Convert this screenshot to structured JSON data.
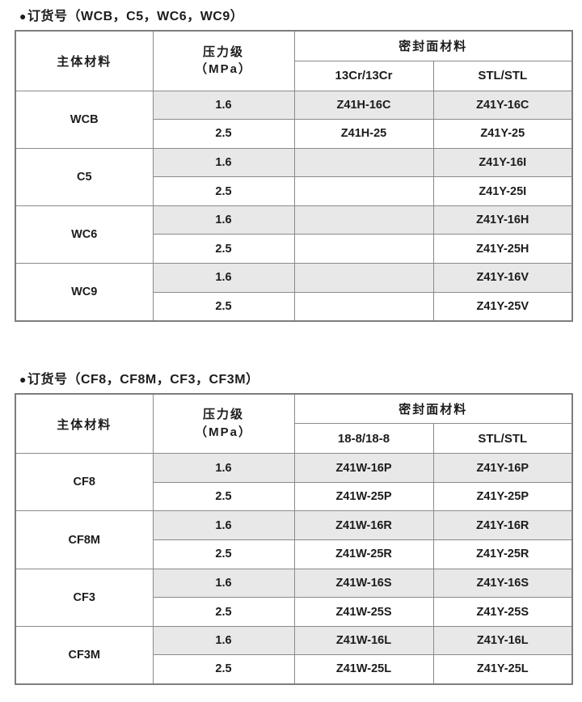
{
  "page": {
    "background": "#ffffff"
  },
  "colors": {
    "row_shade": "#e8e8e8",
    "grid_border": "#8a8a8a",
    "outer_border": "#7d7d7d",
    "text": "#1c1c1c"
  },
  "tables": [
    {
      "bullet": "●",
      "title": "订货号（WCB，C5，WC6，WC9）",
      "headers": {
        "material": "主体材料",
        "pressure_line1": "压力级",
        "pressure_line2": "（MPa）",
        "seal": "密封面材料",
        "seal_col1": "13Cr/13Cr",
        "seal_col2": "STL/STL"
      },
      "groups": [
        {
          "material": "WCB",
          "rows": [
            {
              "pressure": "1.6",
              "shaded": true,
              "cols": [
                "Z41H-16C",
                "Z41Y-16C"
              ]
            },
            {
              "pressure": "2.5",
              "shaded": false,
              "cols": [
                "Z41H-25",
                "Z41Y-25"
              ]
            }
          ]
        },
        {
          "material": "C5",
          "rows": [
            {
              "pressure": "1.6",
              "shaded": true,
              "cols": [
                "",
                "Z41Y-16I"
              ]
            },
            {
              "pressure": "2.5",
              "shaded": false,
              "cols": [
                "",
                "Z41Y-25I"
              ]
            }
          ]
        },
        {
          "material": "WC6",
          "rows": [
            {
              "pressure": "1.6",
              "shaded": true,
              "cols": [
                "",
                "Z41Y-16H"
              ]
            },
            {
              "pressure": "2.5",
              "shaded": false,
              "cols": [
                "",
                "Z41Y-25H"
              ]
            }
          ]
        },
        {
          "material": "WC9",
          "rows": [
            {
              "pressure": "1.6",
              "shaded": true,
              "cols": [
                "",
                "Z41Y-16V"
              ]
            },
            {
              "pressure": "2.5",
              "shaded": false,
              "cols": [
                "",
                "Z41Y-25V"
              ]
            }
          ]
        }
      ]
    },
    {
      "bullet": "●",
      "title": "订货号（CF8，CF8M，CF3，CF3M）",
      "headers": {
        "material": "主体材料",
        "pressure_line1": "压力级",
        "pressure_line2": "（MPa）",
        "seal": "密封面材料",
        "seal_col1": "18-8/18-8",
        "seal_col2": "STL/STL"
      },
      "groups": [
        {
          "material": "CF8",
          "rows": [
            {
              "pressure": "1.6",
              "shaded": true,
              "cols": [
                "Z41W-16P",
                "Z41Y-16P"
              ]
            },
            {
              "pressure": "2.5",
              "shaded": false,
              "cols": [
                "Z41W-25P",
                "Z41Y-25P"
              ]
            }
          ]
        },
        {
          "material": "CF8M",
          "rows": [
            {
              "pressure": "1.6",
              "shaded": true,
              "cols": [
                "Z41W-16R",
                "Z41Y-16R"
              ]
            },
            {
              "pressure": "2.5",
              "shaded": false,
              "cols": [
                "Z41W-25R",
                "Z41Y-25R"
              ]
            }
          ]
        },
        {
          "material": "CF3",
          "rows": [
            {
              "pressure": "1.6",
              "shaded": true,
              "cols": [
                "Z41W-16S",
                "Z41Y-16S"
              ]
            },
            {
              "pressure": "2.5",
              "shaded": false,
              "cols": [
                "Z41W-25S",
                "Z41Y-25S"
              ]
            }
          ]
        },
        {
          "material": "CF3M",
          "rows": [
            {
              "pressure": "1.6",
              "shaded": true,
              "cols": [
                "Z41W-16L",
                "Z41Y-16L"
              ]
            },
            {
              "pressure": "2.5",
              "shaded": false,
              "cols": [
                "Z41W-25L",
                "Z41Y-25L"
              ]
            }
          ]
        }
      ]
    }
  ]
}
